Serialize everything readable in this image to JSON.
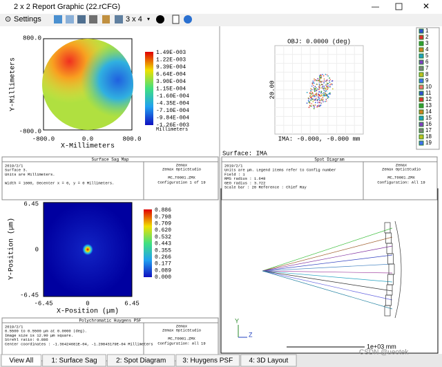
{
  "window": {
    "title": "2 x 2 Report Graphic (22.rCFG)"
  },
  "toolbar": {
    "settings": "Settings",
    "layout": "3 x 4"
  },
  "sag": {
    "y_label": "Y-Millimeters",
    "x_label": "X-Millimeters",
    "y_ticks": [
      "800.0",
      "-800.0"
    ],
    "x_ticks": [
      "-800.0",
      "0.0",
      "800.0"
    ],
    "colorbar": [
      "1.49E-003",
      "1.22E-003",
      "9.39E-004",
      "6.64E-004",
      "3.90E-004",
      "1.15E-004",
      "-1.60E-004",
      "-4.35E-004",
      "-7.10E-004",
      "-9.84E-004",
      "-1.26E-003"
    ],
    "colorbar_unit": "Millimeters",
    "info": {
      "title": "Surface Sag Map",
      "lines": [
        "2019/2/1",
        "Surface 3.",
        "Units are Millimeters.",
        "",
        "Width = 1600, Decenter x = 0, y = 0 Millimeters."
      ],
      "company": [
        "Zemax",
        "Zemax OpticStudio"
      ],
      "file": "MC_T0001.ZMX",
      "config": "Configuration 1 of 19"
    }
  },
  "spot": {
    "obj": "OBJ: 0.0000 (deg)",
    "scale": "20.00",
    "ima": "IMA: -0.000, -0.000 mm",
    "surface": "Surface: IMA",
    "legend": [
      "1",
      "2",
      "3",
      "4",
      "5",
      "6",
      "7",
      "8",
      "9",
      "10",
      "11",
      "12",
      "13",
      "14",
      "15",
      "16",
      "17",
      "18",
      "19"
    ],
    "info": {
      "title": "Spot Diagram",
      "lines": [
        "2019/2/1",
        "Units are µm. Legend items refer to Config number",
        "Field      :    1",
        "RMS radius :  1.648",
        "GEO radius :  3.722",
        "Scale bar  : 20      Reference   : Chief Ray"
      ],
      "company": [
        "Zemax",
        "Zemax OpticStudio"
      ],
      "file": "MC_T0001.ZMX",
      "config": "Configuration: All 19"
    }
  },
  "psf": {
    "y_label": "Y-Position (µm)",
    "x_label": "X-Position (µm)",
    "y_ticks": [
      "6.45",
      "0",
      "-6.45"
    ],
    "x_ticks": [
      "-6.45",
      "0",
      "6.45"
    ],
    "colorbar": [
      "0.886",
      "0.798",
      "0.709",
      "0.620",
      "0.532",
      "0.443",
      "0.355",
      "0.266",
      "0.177",
      "0.089",
      "0.000"
    ],
    "info": {
      "title": "Polychromatic Huygens PSF",
      "lines": [
        "2019/2/1",
        "0.5500 to 0.5500 µm at 0.0000 (deg).",
        "Image size is 12.90 µm square.",
        "Strehl ratio: 0.886",
        "Center coordinates : -1.36424681E-04, -1.20843179E-04 Millimeters"
      ],
      "company": [
        "Zemax",
        "Zemax OpticStudio"
      ],
      "file": "MC_T0001.ZMX",
      "config": "Configuration: All 19"
    }
  },
  "layout3d": {
    "scale": "1e+03 mm",
    "axis_y": "Y",
    "axis_z": "Z"
  },
  "tabs": [
    "View All",
    "1: Surface Sag",
    "2: Spot Diagram",
    "3: Huygens PSF",
    "4: 3D Layout"
  ],
  "watermark": "CSDN @ueotek"
}
